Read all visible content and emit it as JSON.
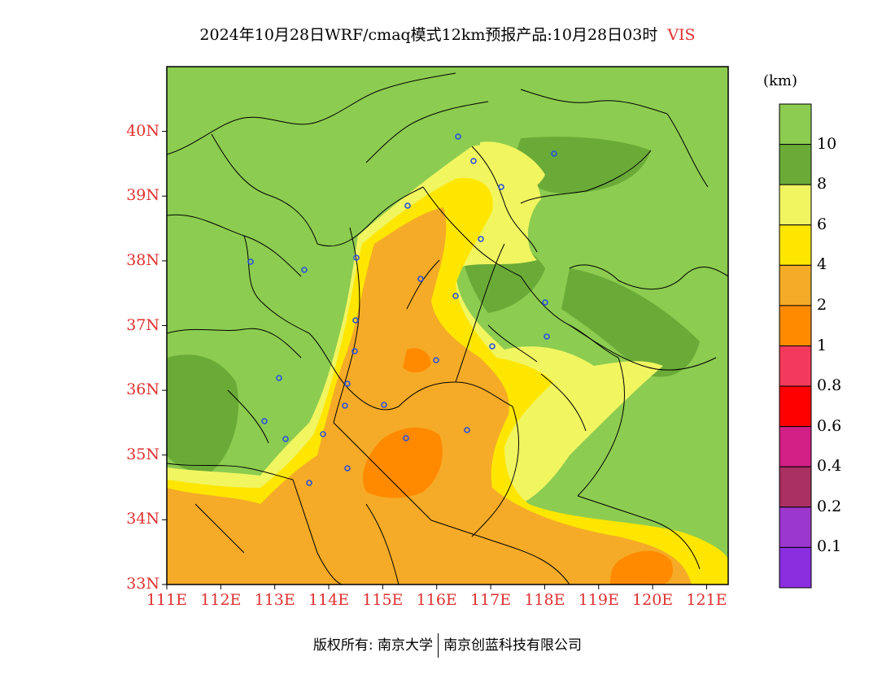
{
  "title": {
    "text": "2024年10月28日WRF/cmaq模式12km预报产品:10月28日03时",
    "variable": "VIS"
  },
  "map": {
    "lat_ticks": [
      "33N",
      "34N",
      "35N",
      "36N",
      "37N",
      "38N",
      "39N",
      "40N"
    ],
    "lon_ticks": [
      "111E",
      "112E",
      "113E",
      "114E",
      "115E",
      "116E",
      "117E",
      "118E",
      "119E",
      "120E",
      "121E"
    ],
    "lon_range": [
      111,
      121.4
    ],
    "lat_range": [
      33,
      41
    ],
    "colors": {
      "gt10": "#8ccc50",
      "8to10": "#6aab38",
      "6to8": "#f0f560",
      "4to6": "#ffe600",
      "2to4": "#f5ab27",
      "1to2": "#ff8a00",
      "boundary": "#000000",
      "station": "#2a4fe0"
    }
  },
  "colorbar": {
    "unit": "(km)",
    "colors": [
      "#8ccc50",
      "#6aab38",
      "#f0f560",
      "#ffe600",
      "#f5ab27",
      "#ff8a00",
      "#f43a5c",
      "#ff0000",
      "#d21f86",
      "#a93060",
      "#9b37cc",
      "#8a2ee0"
    ],
    "labels": [
      "10",
      "8",
      "6",
      "4",
      "2",
      "1",
      "0.8",
      "0.6",
      "0.4",
      "0.2",
      "0.1"
    ]
  },
  "credit": {
    "left": "版权所有: 南京大学",
    "right": "南京创蓝科技有限公司"
  }
}
